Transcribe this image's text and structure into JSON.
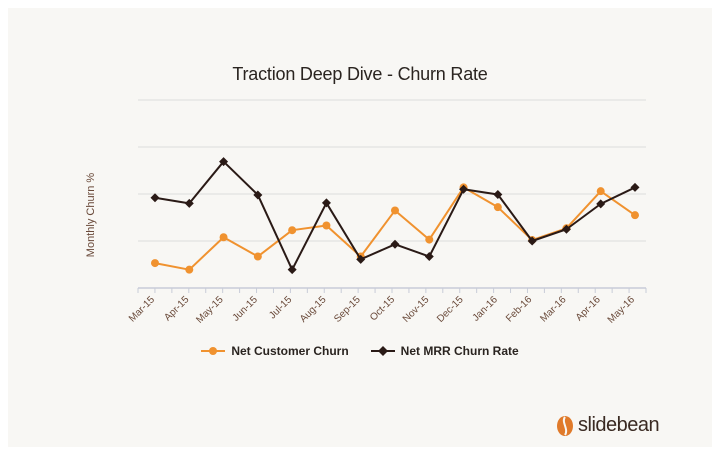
{
  "chart_data": {
    "type": "line",
    "title": "Traction Deep Dive - Churn Rate",
    "xlabel": "",
    "ylabel": "Monthly Churn %",
    "categories": [
      "Mar-15",
      "Apr-15",
      "May-15",
      "Jun-15",
      "Jul-15",
      "Aug-15",
      "Sep-15",
      "Oct-15",
      "Nov-15",
      "Dec-15",
      "Jan-16",
      "Feb-16",
      "Mar-16",
      "Apr-16",
      "May-16"
    ],
    "ylim": [
      0,
      4
    ],
    "grid": true,
    "legend_position": "bottom",
    "series": [
      {
        "name": "Net Customer Churn",
        "color": "#f0922f",
        "marker": "circle",
        "values": [
          0.53,
          0.39,
          1.08,
          0.67,
          1.23,
          1.33,
          0.67,
          1.65,
          1.03,
          2.14,
          1.72,
          1.02,
          1.27,
          2.06,
          1.55
        ]
      },
      {
        "name": "Net MRR Churn Rate",
        "color": "#2a1a16",
        "marker": "diamond",
        "values": [
          1.92,
          1.8,
          2.69,
          1.98,
          0.39,
          1.81,
          0.61,
          0.93,
          0.67,
          2.1,
          1.99,
          1.0,
          1.25,
          1.79,
          2.14
        ]
      }
    ]
  },
  "brand": {
    "text": "slidebean",
    "icon": "bean-icon",
    "icon_color": "#e07a2a"
  }
}
